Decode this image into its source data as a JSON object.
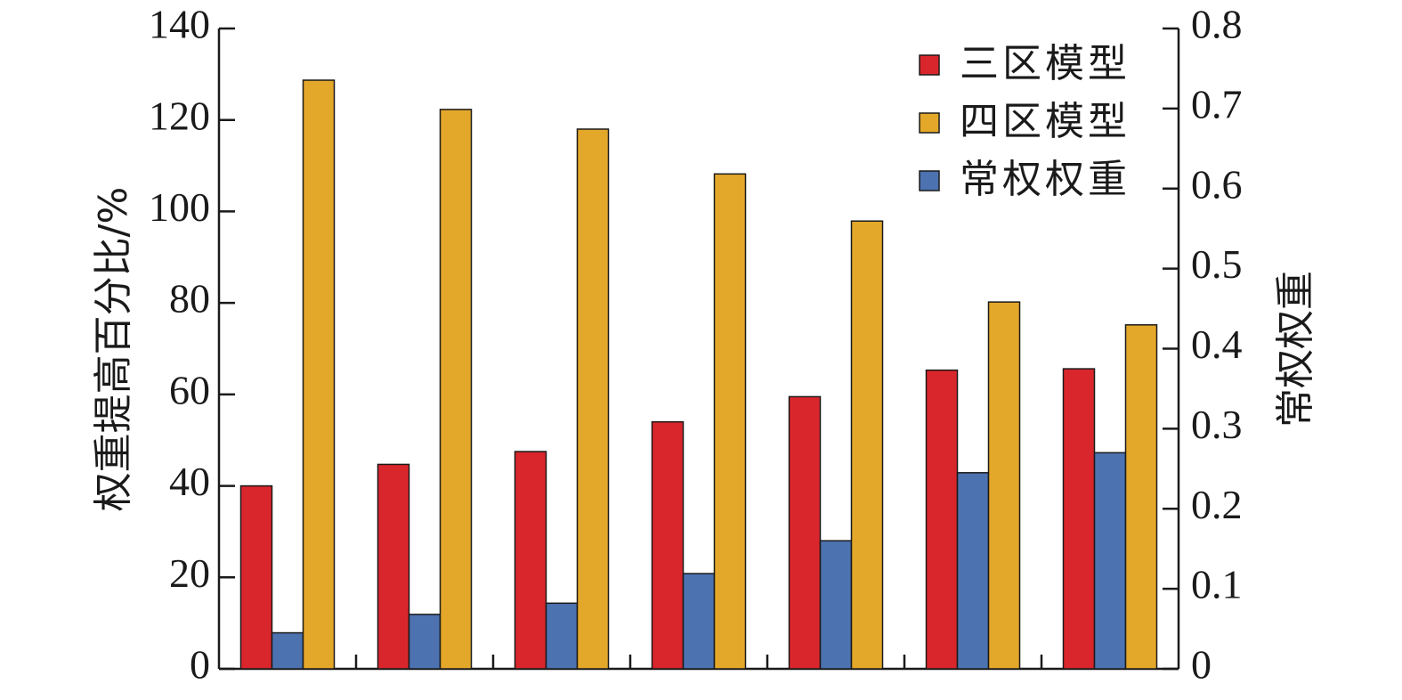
{
  "chart_data": {
    "type": "bar",
    "categories": [
      "",
      "",
      "",
      "",
      "",
      "",
      ""
    ],
    "series": [
      {
        "name": "三区模型",
        "axis": "left",
        "color": "#d9262c",
        "values": [
          40,
          44.7,
          47.5,
          54,
          59.5,
          65.3,
          65.6
        ]
      },
      {
        "name": "常权权重",
        "axis": "right",
        "color": "#4c72b0",
        "values": [
          0.045,
          0.068,
          0.082,
          0.119,
          0.16,
          0.245,
          0.27
        ]
      },
      {
        "name": "四区模型",
        "axis": "left",
        "color": "#e3a72a",
        "values": [
          128.7,
          122.3,
          118,
          108.2,
          97.9,
          80.2,
          75.2
        ]
      }
    ],
    "legend": {
      "position": "top-right",
      "entries": [
        {
          "label": "三区模型",
          "color": "#d9262c"
        },
        {
          "label": "四区模型",
          "color": "#e3a72a"
        },
        {
          "label": "常权权重",
          "color": "#4c72b0"
        }
      ]
    },
    "y_left": {
      "label": "权重提高百分比/%",
      "ylim": [
        0,
        140
      ],
      "ticks": [
        "0",
        "20",
        "40",
        "60",
        "80",
        "100",
        "120",
        "140"
      ]
    },
    "y_right": {
      "label": "常权权重",
      "ylim": [
        0,
        0.8
      ],
      "ticks": [
        "0",
        "0.1",
        "0.2",
        "0.3",
        "0.4",
        "0.5",
        "0.6",
        "0.7",
        "0.8"
      ]
    },
    "grid": false
  }
}
